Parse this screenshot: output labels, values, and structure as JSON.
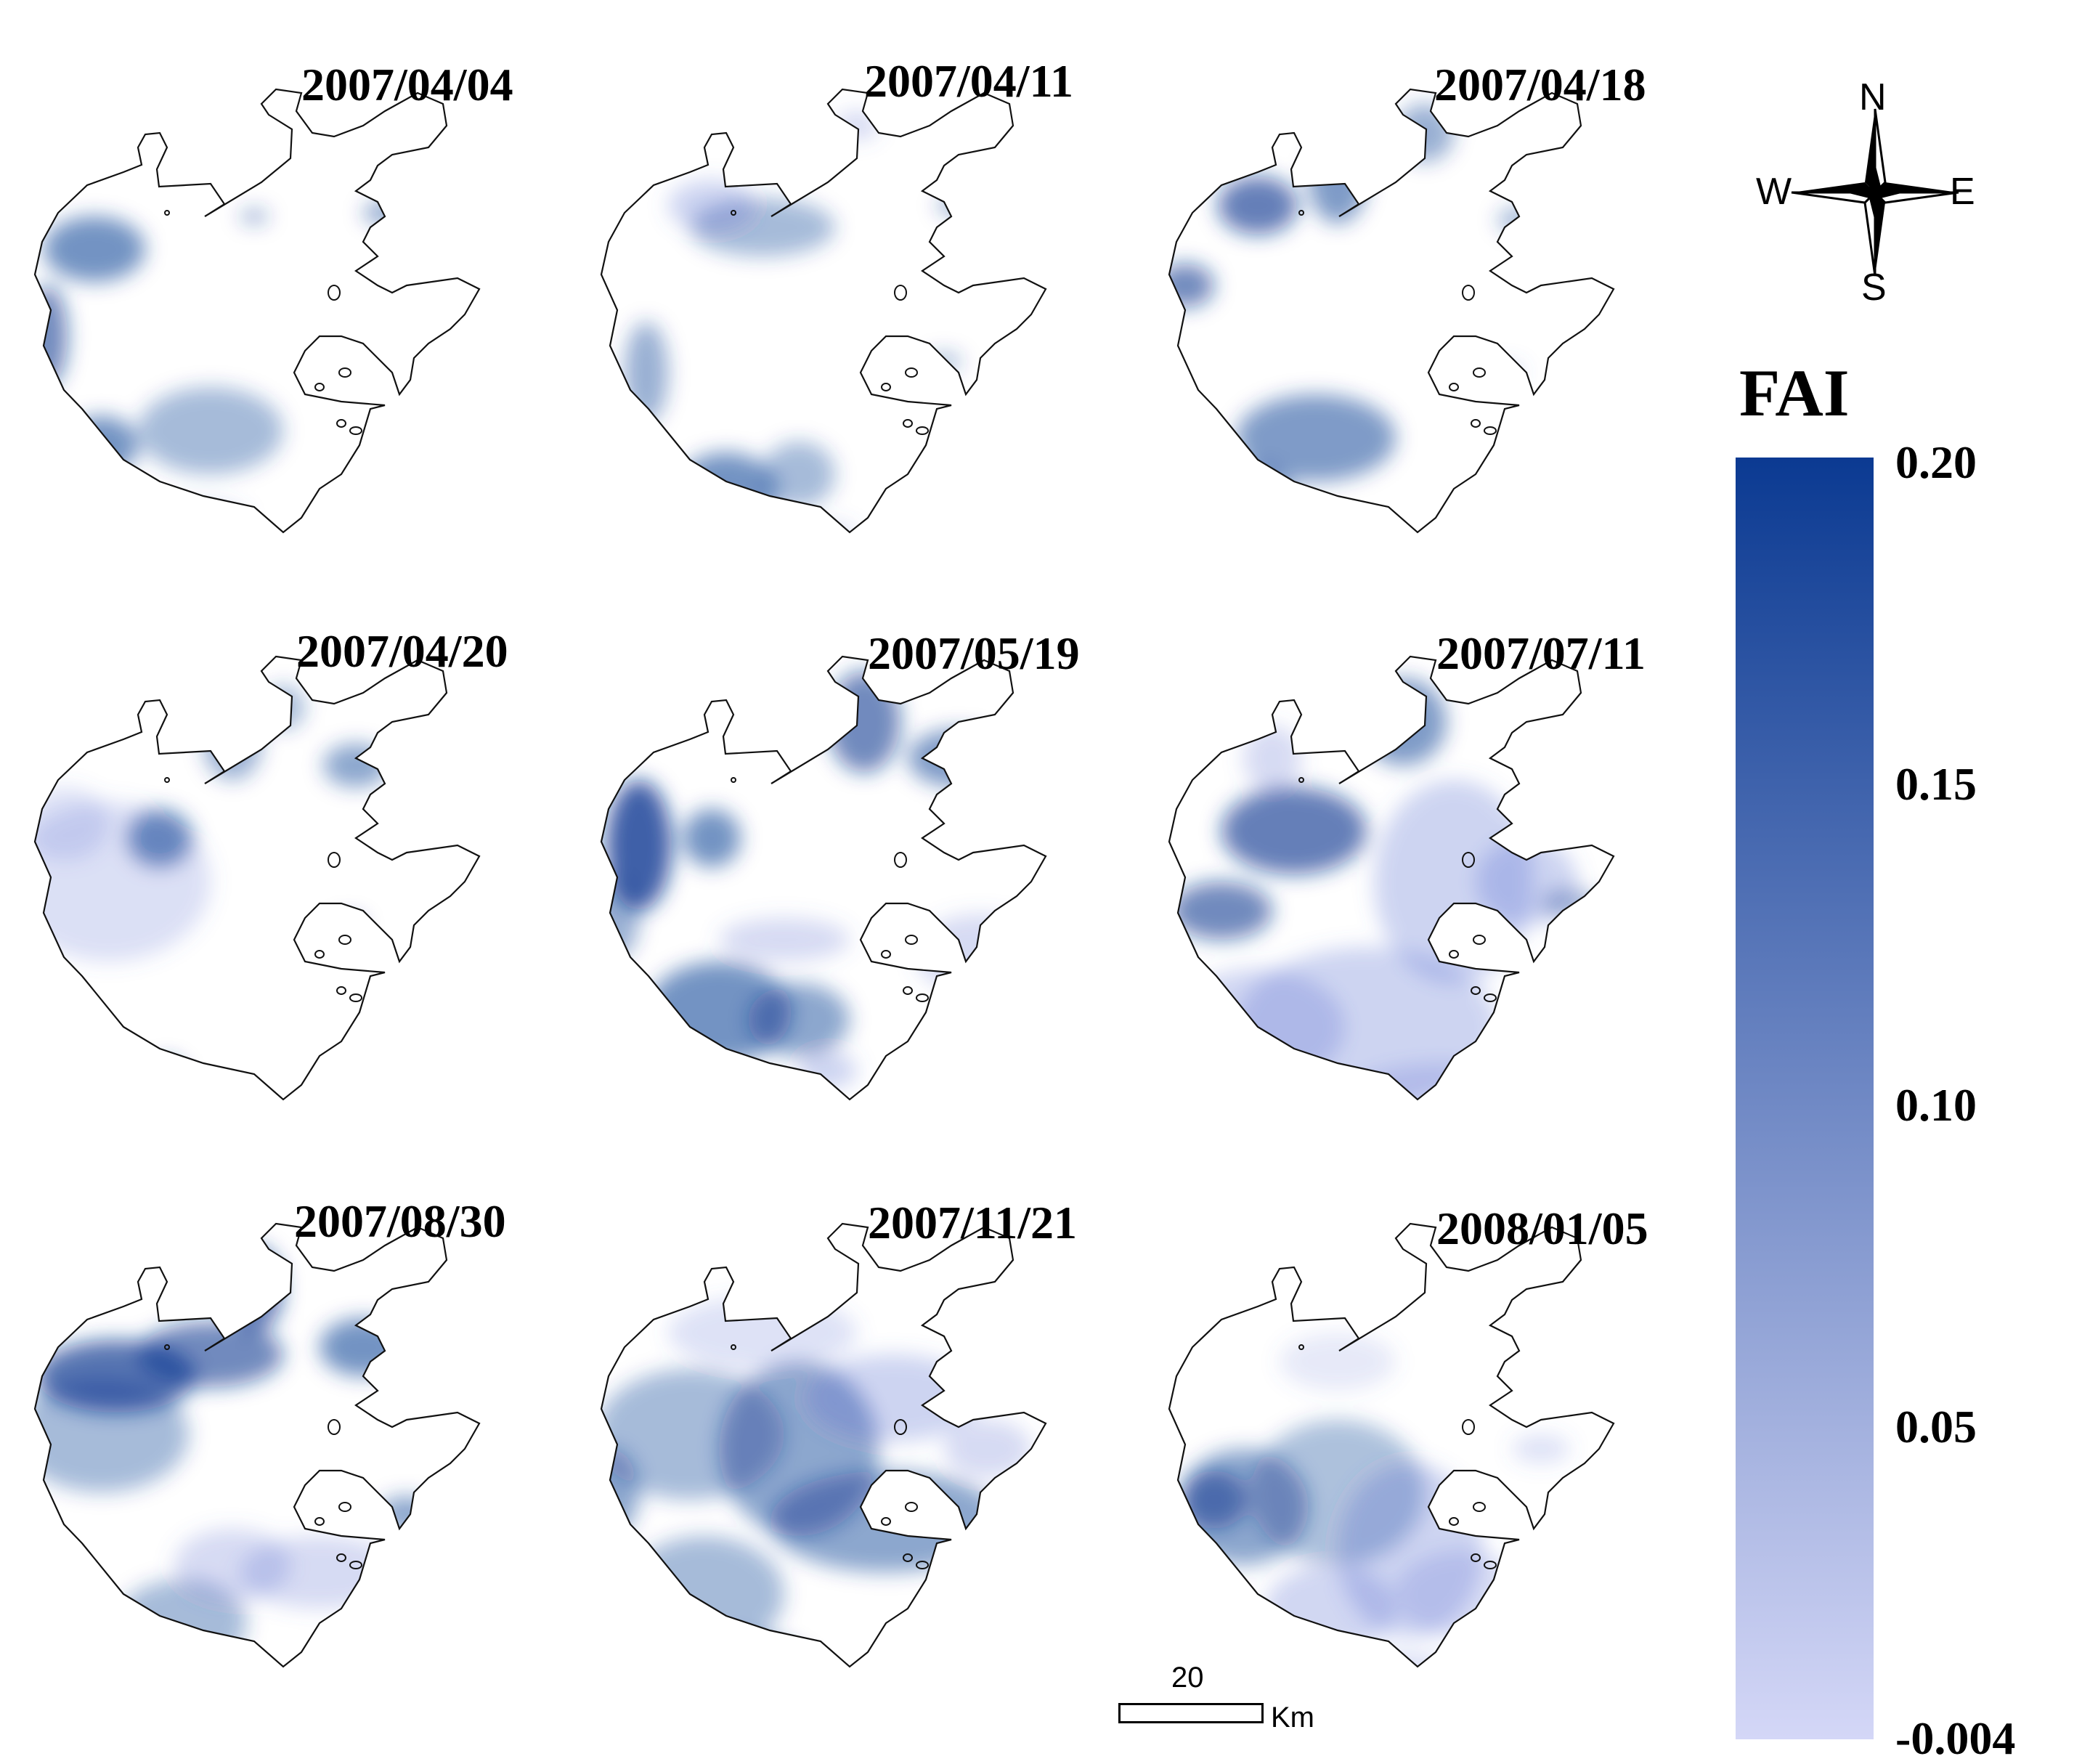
{
  "maps": [
    {
      "date": "2007/04/04"
    },
    {
      "date": "2007/04/11"
    },
    {
      "date": "2007/04/18"
    },
    {
      "date": "2007/04/20"
    },
    {
      "date": "2007/05/19"
    },
    {
      "date": "2007/07/11"
    },
    {
      "date": "2007/08/30"
    },
    {
      "date": "2007/11/21"
    },
    {
      "date": "2008/01/05"
    }
  ],
  "compass": {
    "north": "N",
    "south": "S",
    "east": "E",
    "west": "W"
  },
  "legend": {
    "title": "FAI",
    "max_label": "0.20",
    "label_015": "0.15",
    "label_010": "0.10",
    "label_005": "0.05",
    "min_label": "-0.004",
    "color_max": "#0b3a92",
    "color_min": "#d4d7f7"
  },
  "scale_bar": {
    "value": "20",
    "unit": "Km"
  }
}
